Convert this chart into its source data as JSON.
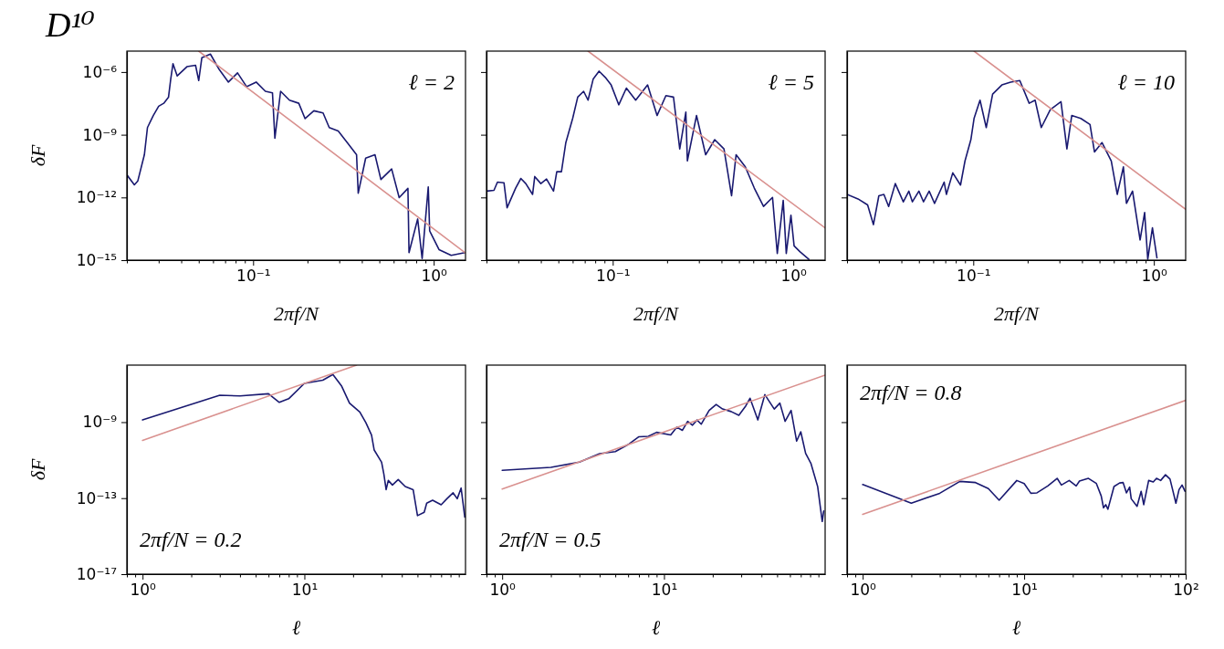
{
  "chart_data": [
    {
      "type": "line",
      "title": "D¹⁰",
      "xlabel": "2πf/N",
      "ylabel": "δF",
      "annotations": [
        "ℓ = 2"
      ],
      "log": "xy",
      "xlim": [
        0.02,
        1.5
      ],
      "ylim": [
        1e-15,
        1e-05
      ],
      "xticks": [
        {
          "value": 0.02,
          "label": null
        },
        {
          "value": 0.03,
          "label": null
        },
        {
          "value": 0.04,
          "label": null
        },
        {
          "value": 0.05,
          "label": null
        },
        {
          "value": 0.06,
          "label": null
        },
        {
          "value": 0.07,
          "label": null
        },
        {
          "value": 0.08,
          "label": null
        },
        {
          "value": 0.09,
          "label": null
        },
        {
          "value": 0.1,
          "label": "10⁻¹"
        },
        {
          "value": 0.2,
          "label": null
        },
        {
          "value": 0.3,
          "label": null
        },
        {
          "value": 0.4,
          "label": null
        },
        {
          "value": 0.5,
          "label": null
        },
        {
          "value": 0.6,
          "label": null
        },
        {
          "value": 0.7,
          "label": null
        },
        {
          "value": 0.8,
          "label": null
        },
        {
          "value": 0.9,
          "label": null
        },
        {
          "value": 1,
          "label": "10⁰"
        }
      ],
      "yticks": [
        {
          "value": 1e-15,
          "label": "10⁻¹⁵"
        },
        {
          "value": 1e-12,
          "label": "10⁻¹²"
        },
        {
          "value": 1e-09,
          "label": "10⁻⁹"
        },
        {
          "value": 1e-06,
          "label": "10⁻⁶"
        }
      ],
      "series": [
        {
          "type": "line",
          "color": "#191970",
          "x": [
            0.02,
            0.022,
            0.023,
            0.025,
            0.026,
            0.028,
            0.03,
            0.032,
            0.034,
            0.035,
            0.036,
            0.038,
            0.043,
            0.048,
            0.05,
            0.052,
            0.058,
            0.065,
            0.073,
            0.082,
            0.092,
            0.104,
            0.117,
            0.128,
            0.132,
            0.142,
            0.159,
            0.179,
            0.194,
            0.217,
            0.244,
            0.264,
            0.296,
            0.333,
            0.374,
            0.382,
            0.42,
            0.473,
            0.51,
            0.585,
            0.644,
            0.72,
            0.73,
            0.815,
            0.863,
            0.933,
            0.95,
            1.07,
            1.25,
            1.49
          ],
          "values": [
            1.2e-11,
            4e-12,
            6.2e-12,
            1.1e-10,
            2.2e-09,
            8.3e-09,
            2.3e-08,
            3.2e-08,
            6.2e-08,
            4.7e-07,
            2.5e-06,
            6.5e-07,
            1.8e-06,
            2.1e-06,
            3.9e-07,
            4.8e-06,
            7.2e-06,
            1.3e-06,
            3.3e-07,
            9.1e-07,
            2e-07,
            3.3e-07,
            1.2e-07,
            1e-07,
            6.8e-10,
            1.2e-07,
            4.5e-08,
            3.2e-08,
            5.9e-09,
            1.4e-08,
            1.1e-08,
            2.2e-09,
            1.5e-09,
            4.1e-10,
            1.1e-10,
            1.6e-12,
            7.6e-11,
            1.1e-10,
            7.2e-12,
            2.3e-11,
            9.8e-13,
            2.7e-12,
            2.3e-15,
            9.3e-14,
            1.2e-15,
            3.2e-12,
            2.5e-14,
            3.2e-15,
            1.7e-15,
            2.3e-15
          ]
        },
        {
          "type": "line",
          "color": "#d9918f",
          "x": [
            0.05,
            1.5
          ],
          "values": [
            1e-05,
            2.2e-15
          ]
        }
      ]
    },
    {
      "type": "line",
      "xlabel": "2πf/N",
      "annotations": [
        "ℓ = 5"
      ],
      "log": "xy",
      "tick_labels": "x",
      "xlim": [
        0.02,
        1.5
      ],
      "ylim": [
        1e-15,
        1e-05
      ],
      "xticks": [
        {
          "value": 0.02,
          "label": null
        },
        {
          "value": 0.03,
          "label": null
        },
        {
          "value": 0.04,
          "label": null
        },
        {
          "value": 0.05,
          "label": null
        },
        {
          "value": 0.06,
          "label": null
        },
        {
          "value": 0.07,
          "label": null
        },
        {
          "value": 0.08,
          "label": null
        },
        {
          "value": 0.09,
          "label": null
        },
        {
          "value": 0.1,
          "label": "10⁻¹"
        },
        {
          "value": 0.2,
          "label": null
        },
        {
          "value": 0.3,
          "label": null
        },
        {
          "value": 0.4,
          "label": null
        },
        {
          "value": 0.5,
          "label": null
        },
        {
          "value": 0.6,
          "label": null
        },
        {
          "value": 0.7,
          "label": null
        },
        {
          "value": 0.8,
          "label": null
        },
        {
          "value": 0.9,
          "label": null
        },
        {
          "value": 1,
          "label": "10⁰"
        }
      ],
      "yticks": [
        {
          "value": 1e-15,
          "label": null
        },
        {
          "value": 1e-12,
          "label": null
        },
        {
          "value": 1e-09,
          "label": null
        },
        {
          "value": 1e-06,
          "label": null
        }
      ],
      "series": [
        {
          "type": "line",
          "color": "#191970",
          "x": [
            0.02,
            0.022,
            0.023,
            0.025,
            0.026,
            0.029,
            0.031,
            0.033,
            0.036,
            0.037,
            0.04,
            0.043,
            0.047,
            0.049,
            0.052,
            0.055,
            0.06,
            0.064,
            0.069,
            0.073,
            0.078,
            0.084,
            0.091,
            0.098,
            0.108,
            0.119,
            0.134,
            0.156,
            0.176,
            0.197,
            0.217,
            0.235,
            0.254,
            0.259,
            0.291,
            0.327,
            0.367,
            0.413,
            0.455,
            0.482,
            0.542,
            0.608,
            0.684,
            0.767,
            0.815,
            0.879,
            0.914,
            0.97,
            1.01,
            1.09,
            1.22
          ],
          "values": [
            2e-12,
            2.2e-12,
            5.4e-12,
            5e-12,
            3.2e-13,
            2.8e-12,
            8.1e-12,
            4.6e-12,
            1.4e-12,
            1e-11,
            4.6e-12,
            7.6e-12,
            2e-12,
            1.7e-11,
            1.7e-11,
            4.2e-10,
            6e-09,
            6.3e-08,
            1.2e-07,
            4.5e-08,
            4.7e-07,
            1.1e-06,
            5.5e-07,
            2.4e-07,
            2.7e-08,
            1.7e-07,
            4.5e-08,
            2.4e-07,
            8.3e-09,
            7.4e-08,
            6.3e-08,
            2.1e-10,
            1.2e-08,
            5.6e-11,
            8.3e-09,
            1.1e-10,
            5.8e-10,
            2.1e-10,
            1.2e-12,
            1.1e-10,
            2.9e-11,
            2.8e-12,
            3.7e-13,
            1e-12,
            2.1e-15,
            7.2e-13,
            2.1e-15,
            1.4e-13,
            4.8e-15,
            2.5e-15,
            1.1e-15
          ]
        },
        {
          "type": "line",
          "color": "#d9918f",
          "x": [
            0.073,
            1.5
          ],
          "values": [
            1e-05,
            3.5e-14
          ]
        }
      ]
    },
    {
      "type": "line",
      "xlabel": "2πf/N",
      "annotations": [
        "ℓ = 10"
      ],
      "log": "xy",
      "tick_labels": "x",
      "xlim": [
        0.02,
        1.5
      ],
      "ylim": [
        1e-15,
        1e-05
      ],
      "xticks": [
        {
          "value": 0.02,
          "label": null
        },
        {
          "value": 0.03,
          "label": null
        },
        {
          "value": 0.04,
          "label": null
        },
        {
          "value": 0.05,
          "label": null
        },
        {
          "value": 0.06,
          "label": null
        },
        {
          "value": 0.07,
          "label": null
        },
        {
          "value": 0.08,
          "label": null
        },
        {
          "value": 0.09,
          "label": null
        },
        {
          "value": 0.1,
          "label": "10⁻¹"
        },
        {
          "value": 0.2,
          "label": null
        },
        {
          "value": 0.3,
          "label": null
        },
        {
          "value": 0.4,
          "label": null
        },
        {
          "value": 0.5,
          "label": null
        },
        {
          "value": 0.6,
          "label": null
        },
        {
          "value": 0.7,
          "label": null
        },
        {
          "value": 0.8,
          "label": null
        },
        {
          "value": 0.9,
          "label": null
        },
        {
          "value": 1,
          "label": "10⁰"
        }
      ],
      "yticks": [
        {
          "value": 1e-15,
          "label": null
        },
        {
          "value": 1e-12,
          "label": null
        },
        {
          "value": 1e-09,
          "label": null
        },
        {
          "value": 1e-06,
          "label": null
        }
      ],
      "series": [
        {
          "type": "line",
          "color": "#191970",
          "x": [
            0.02,
            0.023,
            0.026,
            0.028,
            0.03,
            0.032,
            0.034,
            0.037,
            0.041,
            0.044,
            0.046,
            0.05,
            0.053,
            0.057,
            0.061,
            0.069,
            0.071,
            0.077,
            0.085,
            0.09,
            0.097,
            0.101,
            0.109,
            0.118,
            0.128,
            0.144,
            0.161,
            0.181,
            0.204,
            0.22,
            0.238,
            0.267,
            0.306,
            0.33,
            0.351,
            0.394,
            0.443,
            0.469,
            0.516,
            0.581,
            0.627,
            0.678,
            0.705,
            0.762,
            0.839,
            0.889,
            0.925,
            0.982,
            1.04
          ],
          "values": [
            1.4e-12,
            8.5e-13,
            4.4e-13,
            5e-14,
            1.2e-12,
            1.4e-12,
            3.7e-13,
            4.6e-12,
            6.2e-13,
            2e-12,
            6.2e-13,
            2e-12,
            6.2e-13,
            2e-12,
            5.2e-13,
            5.4e-12,
            1.4e-12,
            1.5e-11,
            3.9e-12,
            5.6e-11,
            5.8e-10,
            6e-09,
            4.5e-08,
            2.2e-09,
            8.7e-08,
            2.4e-07,
            3.3e-07,
            3.9e-07,
            3.2e-08,
            4.5e-08,
            2.2e-09,
            1.6e-08,
            3.8e-08,
            2.1e-10,
            8.3e-09,
            6e-09,
            3.1e-09,
            1.5e-10,
            4.2e-10,
            5.6e-11,
            1.4e-12,
            2.9e-11,
            5.2e-13,
            2e-12,
            9.3e-15,
            1.9e-13,
            1.1e-15,
            3.5e-14,
            1.3e-15
          ]
        },
        {
          "type": "line",
          "color": "#d9918f",
          "x": [
            0.101,
            1.5
          ],
          "values": [
            1e-05,
            2.7e-13
          ]
        }
      ]
    },
    {
      "type": "line",
      "xlabel": "ℓ",
      "ylabel": "δF",
      "annotations": [
        "2πf/N = 0.2"
      ],
      "log": "xy",
      "xlim": [
        0.8,
        99
      ],
      "ylim": [
        1e-17,
        1e-06
      ],
      "xticks": [
        {
          "value": 0.8,
          "label": null
        },
        {
          "value": 0.9,
          "label": null
        },
        {
          "value": 1,
          "label": "10⁰"
        },
        {
          "value": 2,
          "label": null
        },
        {
          "value": 3,
          "label": null
        },
        {
          "value": 4,
          "label": null
        },
        {
          "value": 5,
          "label": null
        },
        {
          "value": 6,
          "label": null
        },
        {
          "value": 7,
          "label": null
        },
        {
          "value": 8,
          "label": null
        },
        {
          "value": 9,
          "label": null
        },
        {
          "value": 10,
          "label": "10¹"
        },
        {
          "value": 20,
          "label": null
        },
        {
          "value": 30,
          "label": null
        },
        {
          "value": 40,
          "label": null
        },
        {
          "value": 50,
          "label": null
        },
        {
          "value": 60,
          "label": null
        },
        {
          "value": 70,
          "label": null
        },
        {
          "value": 80,
          "label": null
        },
        {
          "value": 90,
          "label": null
        }
      ],
      "yticks": [
        {
          "value": 1e-17,
          "label": "10⁻¹⁷"
        },
        {
          "value": 1e-13,
          "label": "10⁻¹³"
        },
        {
          "value": 1e-09,
          "label": "10⁻⁹"
        }
      ],
      "series": [
        {
          "type": "line",
          "color": "#191970",
          "x": [
            1,
            3,
            4,
            6,
            7,
            8,
            10,
            13,
            15,
            17,
            19,
            22,
            24,
            26,
            27,
            30,
            31,
            32,
            33,
            35,
            38,
            42,
            47,
            50,
            55,
            57,
            62,
            70,
            76,
            83,
            88,
            93,
            98
          ],
          "values": [
            1.3e-09,
            2.6e-08,
            2.4e-08,
            3.1e-08,
            1.1e-08,
            1.7e-08,
            1.1e-07,
            1.6e-07,
            3.2e-07,
            7.8e-08,
            1e-08,
            3.4e-09,
            9.3e-10,
            2.1e-10,
            3.4e-11,
            7.8e-12,
            1.8e-12,
            2.8e-13,
            8.5e-13,
            4.9e-13,
            9.5e-13,
            4.1e-13,
            2.8e-13,
            1.2e-14,
            1.8e-14,
            5.4e-14,
            7.8e-14,
            4.5e-14,
            9.3e-14,
            1.9e-13,
            9.3e-14,
            3.4e-13,
            1e-14
          ]
        },
        {
          "type": "line",
          "color": "#d9918f",
          "x": [
            1,
            21
          ],
          "values": [
            1.1e-10,
            1e-06
          ]
        }
      ]
    },
    {
      "type": "line",
      "xlabel": "ℓ",
      "annotations": [
        "2πf/N = 0.5"
      ],
      "log": "xy",
      "tick_labels": "x",
      "xlim": [
        0.8,
        99
      ],
      "ylim": [
        1e-17,
        1e-06
      ],
      "xticks": [
        {
          "value": 0.8,
          "label": null
        },
        {
          "value": 0.9,
          "label": null
        },
        {
          "value": 1,
          "label": "10⁰"
        },
        {
          "value": 2,
          "label": null
        },
        {
          "value": 3,
          "label": null
        },
        {
          "value": 4,
          "label": null
        },
        {
          "value": 5,
          "label": null
        },
        {
          "value": 6,
          "label": null
        },
        {
          "value": 7,
          "label": null
        },
        {
          "value": 8,
          "label": null
        },
        {
          "value": 9,
          "label": null
        },
        {
          "value": 10,
          "label": "10¹"
        },
        {
          "value": 20,
          "label": null
        },
        {
          "value": 30,
          "label": null
        },
        {
          "value": 40,
          "label": null
        },
        {
          "value": 50,
          "label": null
        },
        {
          "value": 60,
          "label": null
        },
        {
          "value": 70,
          "label": null
        },
        {
          "value": 80,
          "label": null
        },
        {
          "value": 90,
          "label": null
        }
      ],
      "yticks": [
        {
          "value": 1e-17,
          "label": null
        },
        {
          "value": 1e-13,
          "label": null
        },
        {
          "value": 1e-09,
          "label": null
        }
      ],
      "series": [
        {
          "type": "line",
          "color": "#191970",
          "x": [
            1,
            2,
            3,
            4,
            5,
            6,
            7,
            8,
            9,
            11,
            12,
            13,
            14,
            15,
            16,
            17,
            19,
            21,
            23,
            26,
            29,
            32,
            34,
            38,
            42,
            48,
            52,
            56,
            61,
            66,
            70,
            75,
            81,
            89,
            95,
            97
          ],
          "values": [
            2.9e-12,
            4.2e-12,
            7.8e-12,
            2.2e-11,
            2.8e-11,
            6.6e-11,
            1.7e-10,
            1.8e-10,
            2.9e-10,
            2.1e-10,
            5.4e-10,
            3.7e-10,
            1.1e-09,
            6.9e-10,
            1.3e-09,
            7.8e-10,
            4.1e-09,
            8.5e-09,
            4.9e-09,
            3.6e-09,
            2.3e-09,
            7.1e-09,
            1.8e-08,
            1.3e-09,
            2.8e-08,
            4.9e-09,
            1e-08,
            1.1e-09,
            4.1e-09,
            1e-10,
            3.1e-10,
            2.3e-11,
            6.5e-12,
            4.1e-13,
            5.9e-15,
            2.1e-14
          ]
        },
        {
          "type": "line",
          "color": "#d9918f",
          "x": [
            1,
            99
          ],
          "values": [
            3e-13,
            3e-07
          ]
        }
      ]
    },
    {
      "type": "line",
      "xlabel": "ℓ",
      "annotations": [
        "2πf/N = 0.8"
      ],
      "log": "xy",
      "tick_labels": "x",
      "xlim": [
        0.8,
        100
      ],
      "ylim": [
        1e-17,
        1e-06
      ],
      "xticks": [
        {
          "value": 0.8,
          "label": null
        },
        {
          "value": 0.9,
          "label": null
        },
        {
          "value": 1,
          "label": "10⁰"
        },
        {
          "value": 2,
          "label": null
        },
        {
          "value": 3,
          "label": null
        },
        {
          "value": 4,
          "label": null
        },
        {
          "value": 5,
          "label": null
        },
        {
          "value": 6,
          "label": null
        },
        {
          "value": 7,
          "label": null
        },
        {
          "value": 8,
          "label": null
        },
        {
          "value": 9,
          "label": null
        },
        {
          "value": 10,
          "label": "10¹"
        },
        {
          "value": 20,
          "label": null
        },
        {
          "value": 30,
          "label": null
        },
        {
          "value": 40,
          "label": null
        },
        {
          "value": 50,
          "label": null
        },
        {
          "value": 60,
          "label": null
        },
        {
          "value": 70,
          "label": null
        },
        {
          "value": 80,
          "label": null
        },
        {
          "value": 90,
          "label": null
        },
        {
          "value": 100,
          "label": "10²"
        }
      ],
      "yticks": [
        {
          "value": 1e-17,
          "label": null
        },
        {
          "value": 1e-13,
          "label": null
        },
        {
          "value": 1e-09,
          "label": null
        }
      ],
      "series": [
        {
          "type": "line",
          "color": "#191970",
          "x": [
            1,
            2,
            3,
            4,
            5,
            6,
            7,
            9,
            10,
            11,
            12,
            14,
            16,
            17,
            19,
            21,
            22,
            25,
            28,
            30,
            31,
            32,
            33,
            36,
            39,
            41,
            43,
            45,
            46,
            50,
            53,
            55,
            59,
            63,
            66,
            70,
            75,
            80,
            83,
            87,
            91,
            95,
            99
          ],
          "values": [
            5.2e-13,
            5.4e-14,
            1.8e-13,
            7.6e-13,
            6.6e-13,
            3.2e-13,
            7.8e-14,
            8.5e-13,
            5.9e-13,
            1.8e-13,
            1.9e-13,
            4.4e-13,
            1.1e-12,
            4.9e-13,
            8.5e-13,
            4.4e-13,
            7.9e-13,
            1.1e-12,
            5.9e-13,
            1.3e-13,
            3.1e-14,
            4.5e-14,
            2.6e-14,
            4.1e-13,
            6.3e-13,
            6.6e-13,
            1.9e-13,
            3.8e-13,
            9.3e-14,
            3.7e-14,
            2.3e-13,
            4.5e-14,
            8.5e-13,
            7.1e-13,
            1.1e-12,
            8.5e-13,
            1.7e-12,
            1e-12,
            2.8e-13,
            5.4e-14,
            2.8e-13,
            4.9e-13,
            2.3e-13
          ]
        },
        {
          "type": "line",
          "color": "#d9918f",
          "x": [
            1,
            100
          ],
          "values": [
            1.4e-14,
            1.4e-08
          ]
        }
      ]
    }
  ]
}
